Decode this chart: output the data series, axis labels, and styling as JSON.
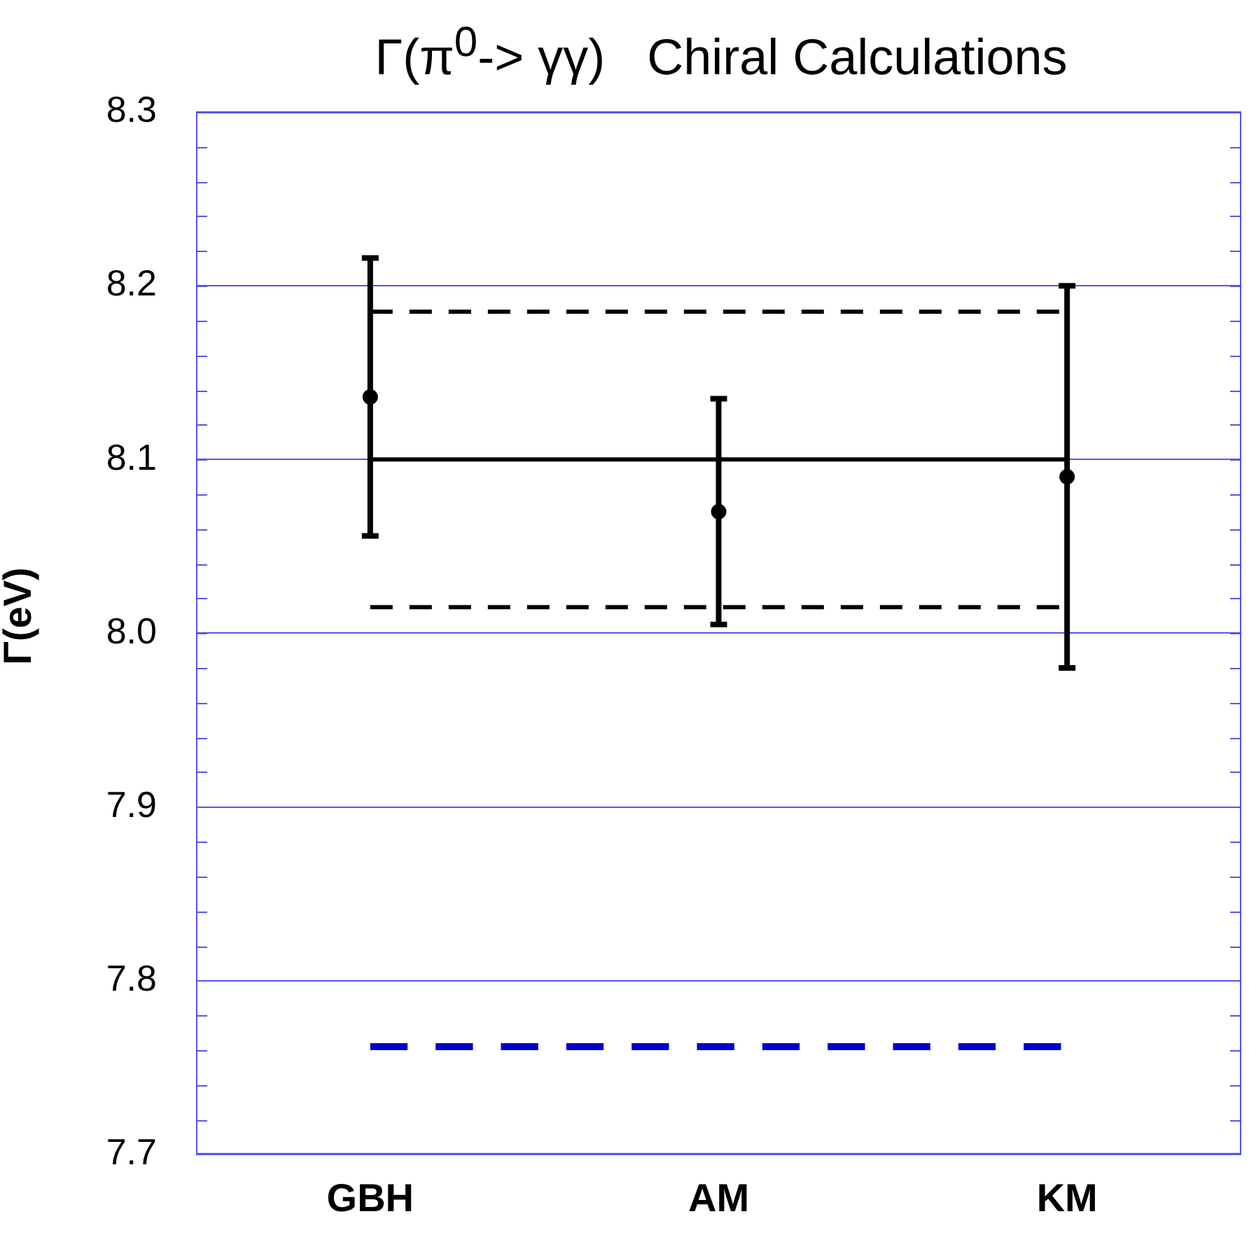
{
  "chart_data": {
    "type": "scatter",
    "title": "Γ(π$^{0}$-> γγ)   Chiral Calculations",
    "ylabel": "Γ(eV)",
    "categories": [
      "GBH",
      "AM",
      "KM"
    ],
    "ylim": [
      7.7,
      8.3
    ],
    "yticks": [
      7.7,
      {
        "value": 7.72,
        "label": null
      },
      {
        "value": 7.74,
        "label": null
      },
      {
        "value": 7.76,
        "label": null
      },
      {
        "value": 7.78,
        "label": null
      },
      7.8,
      {
        "value": 7.82,
        "label": null
      },
      {
        "value": 7.84,
        "label": null
      },
      {
        "value": 7.86,
        "label": null
      },
      {
        "value": 7.88,
        "label": null
      },
      7.9,
      {
        "value": 7.92,
        "label": null
      },
      {
        "value": 7.94,
        "label": null
      },
      {
        "value": 7.96,
        "label": null
      },
      {
        "value": 7.98,
        "label": null
      },
      {
        "value": 8,
        "label": "8.0"
      },
      {
        "value": 8.02,
        "label": null
      },
      {
        "value": 8.04,
        "label": null
      },
      {
        "value": 8.06,
        "label": null
      },
      {
        "value": 8.08,
        "label": null
      },
      8.1,
      {
        "value": 8.12,
        "label": null
      },
      {
        "value": 8.14,
        "label": null
      },
      {
        "value": 8.16,
        "label": null
      },
      {
        "value": 8.18,
        "label": null
      },
      8.2,
      {
        "value": 8.22,
        "label": null
      },
      {
        "value": 8.24,
        "label": null
      },
      {
        "value": 8.26,
        "label": null
      },
      {
        "value": 8.28,
        "label": null
      },
      8.3
    ],
    "grid": "y",
    "marker": "circle",
    "series": [
      {
        "color": "#000000",
        "values": [
          8.136,
          8.07,
          8.09
        ],
        "errors": [
          0.08,
          0.065,
          0.11
        ]
      },
      {
        "type": "line",
        "color": "#000000",
        "values": [
          8.1,
          8.1,
          8.1
        ],
        "line_style": "solid",
        "marker": "none"
      },
      {
        "type": "line",
        "color": "#000000",
        "values": [
          8.185,
          8.185,
          8.185
        ],
        "line_style": "dashed",
        "marker": "none"
      },
      {
        "type": "line",
        "color": "#000000",
        "values": [
          8.015,
          8.015,
          8.015
        ],
        "line_style": "dashed",
        "marker": "none"
      },
      {
        "type": "line",
        "color": "#0000cc",
        "values": [
          7.762,
          7.762,
          7.762
        ],
        "line_style": "dashed",
        "marker": "none"
      }
    ]
  }
}
